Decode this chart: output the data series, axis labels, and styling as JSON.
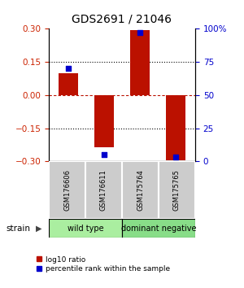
{
  "title": "GDS2691 / 21046",
  "samples": [
    "GSM176606",
    "GSM176611",
    "GSM175764",
    "GSM175765"
  ],
  "log10_ratio": [
    0.1,
    -0.235,
    0.295,
    -0.295
  ],
  "percentile_rank": [
    70,
    5,
    97,
    3
  ],
  "ylim_left": [
    -0.3,
    0.3
  ],
  "ylim_right": [
    0,
    100
  ],
  "yticks_left": [
    -0.3,
    -0.15,
    0,
    0.15,
    0.3
  ],
  "yticks_right": [
    0,
    25,
    50,
    75,
    100
  ],
  "ytick_labels_right": [
    "0",
    "25",
    "50",
    "75",
    "100%"
  ],
  "hlines_black": [
    0.15,
    -0.15
  ],
  "hline_red": 0,
  "bar_color": "#bb1100",
  "square_color": "#0000cc",
  "group_labels": [
    "wild type",
    "dominant negative"
  ],
  "group_ranges": [
    [
      0,
      2
    ],
    [
      2,
      4
    ]
  ],
  "group_color_wt": "#aaeea0",
  "group_color_dn": "#88dd88",
  "sample_box_color": "#cccccc",
  "bar_width": 0.55,
  "left_tick_color": "#cc2200",
  "right_tick_color": "#0000cc",
  "legend_red_label": "log10 ratio",
  "legend_blue_label": "percentile rank within the sample",
  "strain_label": "strain",
  "background_color": "#ffffff"
}
